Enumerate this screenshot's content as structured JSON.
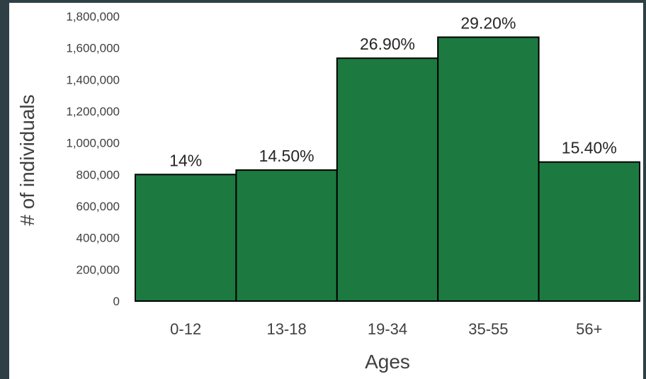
{
  "chart_data": {
    "type": "bar",
    "categories": [
      "0-12",
      "13-18",
      "19-34",
      "35-55",
      "56+"
    ],
    "values": [
      800000,
      828000,
      1535000,
      1668000,
      879000
    ],
    "data_labels": [
      "14%",
      "14.50%",
      "26.90%",
      "29.20%",
      "15.40%"
    ],
    "title": "",
    "xlabel": "Ages",
    "ylabel": "# of individuals",
    "ylim": [
      0,
      1800000
    ],
    "yticks": [
      0,
      200000,
      400000,
      600000,
      800000,
      1000000,
      1200000,
      1400000,
      1600000,
      1800000
    ],
    "ytick_labels": [
      "0",
      "200,000",
      "400,000",
      "600,000",
      "800,000",
      "1,000,000",
      "1,200,000",
      "1,400,000",
      "1,600,000",
      "1,800,000"
    ],
    "grid": false,
    "bar_color": "#1c7a41",
    "edge_color": "#000000",
    "frame_color": "#2e3f46"
  }
}
